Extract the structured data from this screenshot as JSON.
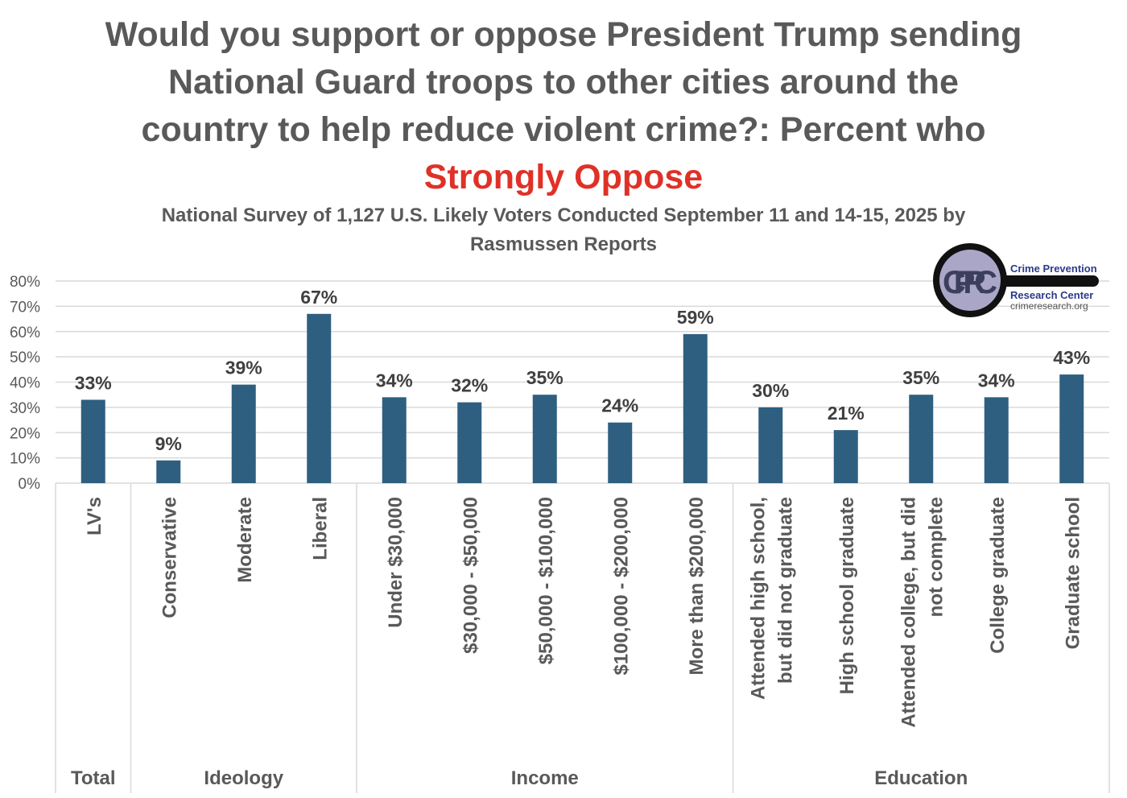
{
  "chart_data": {
    "type": "bar",
    "title_lines": [
      "Would you support or oppose President Trump sending",
      "National Guard troops to other cities around the",
      "country to help reduce violent crime?: Percent who"
    ],
    "title_highlight": "Strongly Oppose",
    "subtitle_lines": [
      "National Survey of 1,127 U.S. Likely Voters Conducted September 11 and 14-15, 2025 by",
      "Rasmussen Reports"
    ],
    "categories": [
      [
        "LV's"
      ],
      [
        "Conservative"
      ],
      [
        "Moderate"
      ],
      [
        "Liberal"
      ],
      [
        "Under $30,000"
      ],
      [
        "$30,000 - $50,000"
      ],
      [
        "$50,000 - $100,000"
      ],
      [
        "$100,000 - $200,000"
      ],
      [
        "More than $200,000"
      ],
      [
        "Attended high school,",
        "but did not graduate"
      ],
      [
        "High school graduate"
      ],
      [
        "Attended college, but did",
        "not complete"
      ],
      [
        "College graduate"
      ],
      [
        "Graduate school"
      ]
    ],
    "values": [
      33,
      9,
      39,
      67,
      34,
      32,
      35,
      24,
      59,
      30,
      21,
      35,
      34,
      43
    ],
    "data_labels": [
      "33%",
      "9%",
      "39%",
      "67%",
      "34%",
      "32%",
      "35%",
      "24%",
      "59%",
      "30%",
      "21%",
      "35%",
      "34%",
      "43%"
    ],
    "groups": [
      {
        "name": "Total",
        "count": 1
      },
      {
        "name": "Ideology",
        "count": 3
      },
      {
        "name": "Income",
        "count": 5
      },
      {
        "name": "Education",
        "count": 5
      }
    ],
    "yticks": [
      "0%",
      "10%",
      "20%",
      "30%",
      "40%",
      "50%",
      "60%",
      "70%",
      "80%"
    ],
    "ylim": [
      0,
      80
    ],
    "grid": true,
    "bar_color": "#2e5f80",
    "title_color": "#595959",
    "highlight_color": "#e03127"
  },
  "logo": {
    "initials": "CPRC",
    "line1": "Crime Prevention",
    "line2": "Research Center",
    "line3": "crimeresearch.org"
  }
}
